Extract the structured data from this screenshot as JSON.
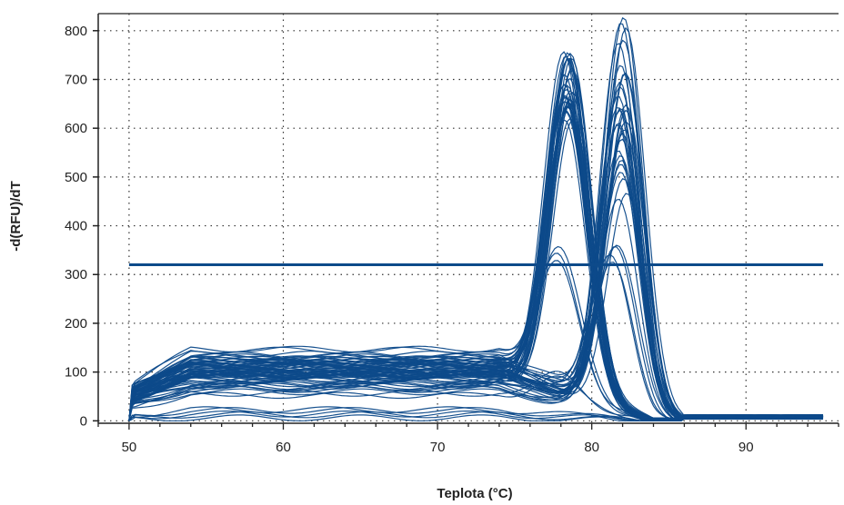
{
  "chart_data": {
    "type": "line",
    "title": "",
    "xlabel": "Teplota (°C)",
    "ylabel": "-d(RFU)/dT",
    "xlim": [
      48,
      96
    ],
    "ylim": [
      -5,
      835
    ],
    "xticks": [
      50,
      60,
      70,
      80,
      90
    ],
    "yticks": [
      0,
      100,
      200,
      300,
      400,
      500,
      600,
      700,
      800
    ],
    "grid": true,
    "legend": "none",
    "line_color": "#0d4a8a",
    "threshold": {
      "y": 320,
      "x_start": 50,
      "x_end": 95
    },
    "curve_families": [
      {
        "name": "",
        "n": 34,
        "baseline_range": [
          80,
          150
        ],
        "peak_x": 78.5,
        "peak_height_range": [
          560,
          700
        ],
        "peak_width": 1.3
      },
      {
        "name": "",
        "n": 30,
        "baseline_range": [
          60,
          140
        ],
        "peak_x": 82.0,
        "peak_height_range": [
          420,
          805
        ],
        "peak_width": 1.25
      },
      {
        "name": "",
        "n": 4,
        "baseline_range": [
          50,
          120
        ],
        "peak_x": 81.5,
        "peak_height_range": [
          280,
          360
        ],
        "peak_width": 1.3
      },
      {
        "name": "",
        "n": 3,
        "baseline_range": [
          60,
          100
        ],
        "peak_x": 78.0,
        "peak_height_range": [
          230,
          330
        ],
        "peak_width": 1.4
      },
      {
        "name": "",
        "n": 2,
        "baseline_range": [
          40,
          60
        ],
        "peak_x": 78.0,
        "peak_height_range": [
          50,
          70
        ],
        "peak_width": 1.4
      },
      {
        "name": "",
        "n": 5,
        "baseline_range": [
          5,
          25
        ],
        "peak_x": 0,
        "peak_height_range": [
          0,
          0
        ],
        "peak_width": 1
      }
    ]
  }
}
